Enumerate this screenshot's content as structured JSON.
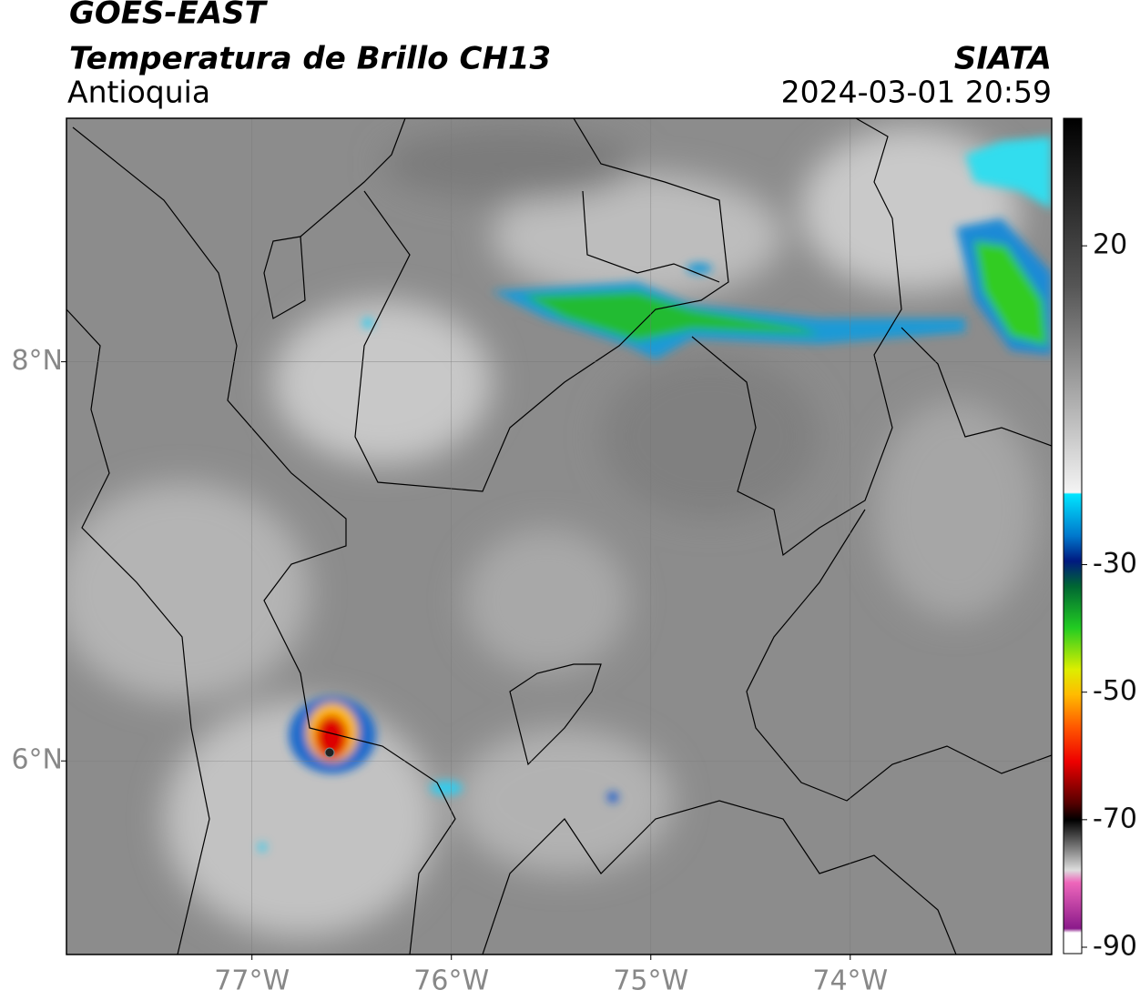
{
  "header": {
    "title": "GOES-EAST",
    "subtitle": "Temperatura de Brillo CH13",
    "region": "Antioquia",
    "source": "SIATA",
    "datetime": "2024-03-01 20:59"
  },
  "map": {
    "xlim": [
      -77.93,
      -72.99
    ],
    "ylim": [
      5.03,
      9.22
    ],
    "xticks": [
      {
        "value": -77,
        "label": "77°W"
      },
      {
        "value": -76,
        "label": "76°W"
      },
      {
        "value": -75,
        "label": "75°W"
      },
      {
        "value": -74,
        "label": "74°W"
      }
    ],
    "yticks": [
      {
        "value": 6,
        "label": "6°N"
      },
      {
        "value": 8,
        "label": "8°N"
      }
    ],
    "grid": true
  },
  "colorbar": {
    "lim": [
      -91,
      40
    ],
    "ticks": [
      20,
      -30,
      -50,
      -70,
      -90
    ]
  }
}
